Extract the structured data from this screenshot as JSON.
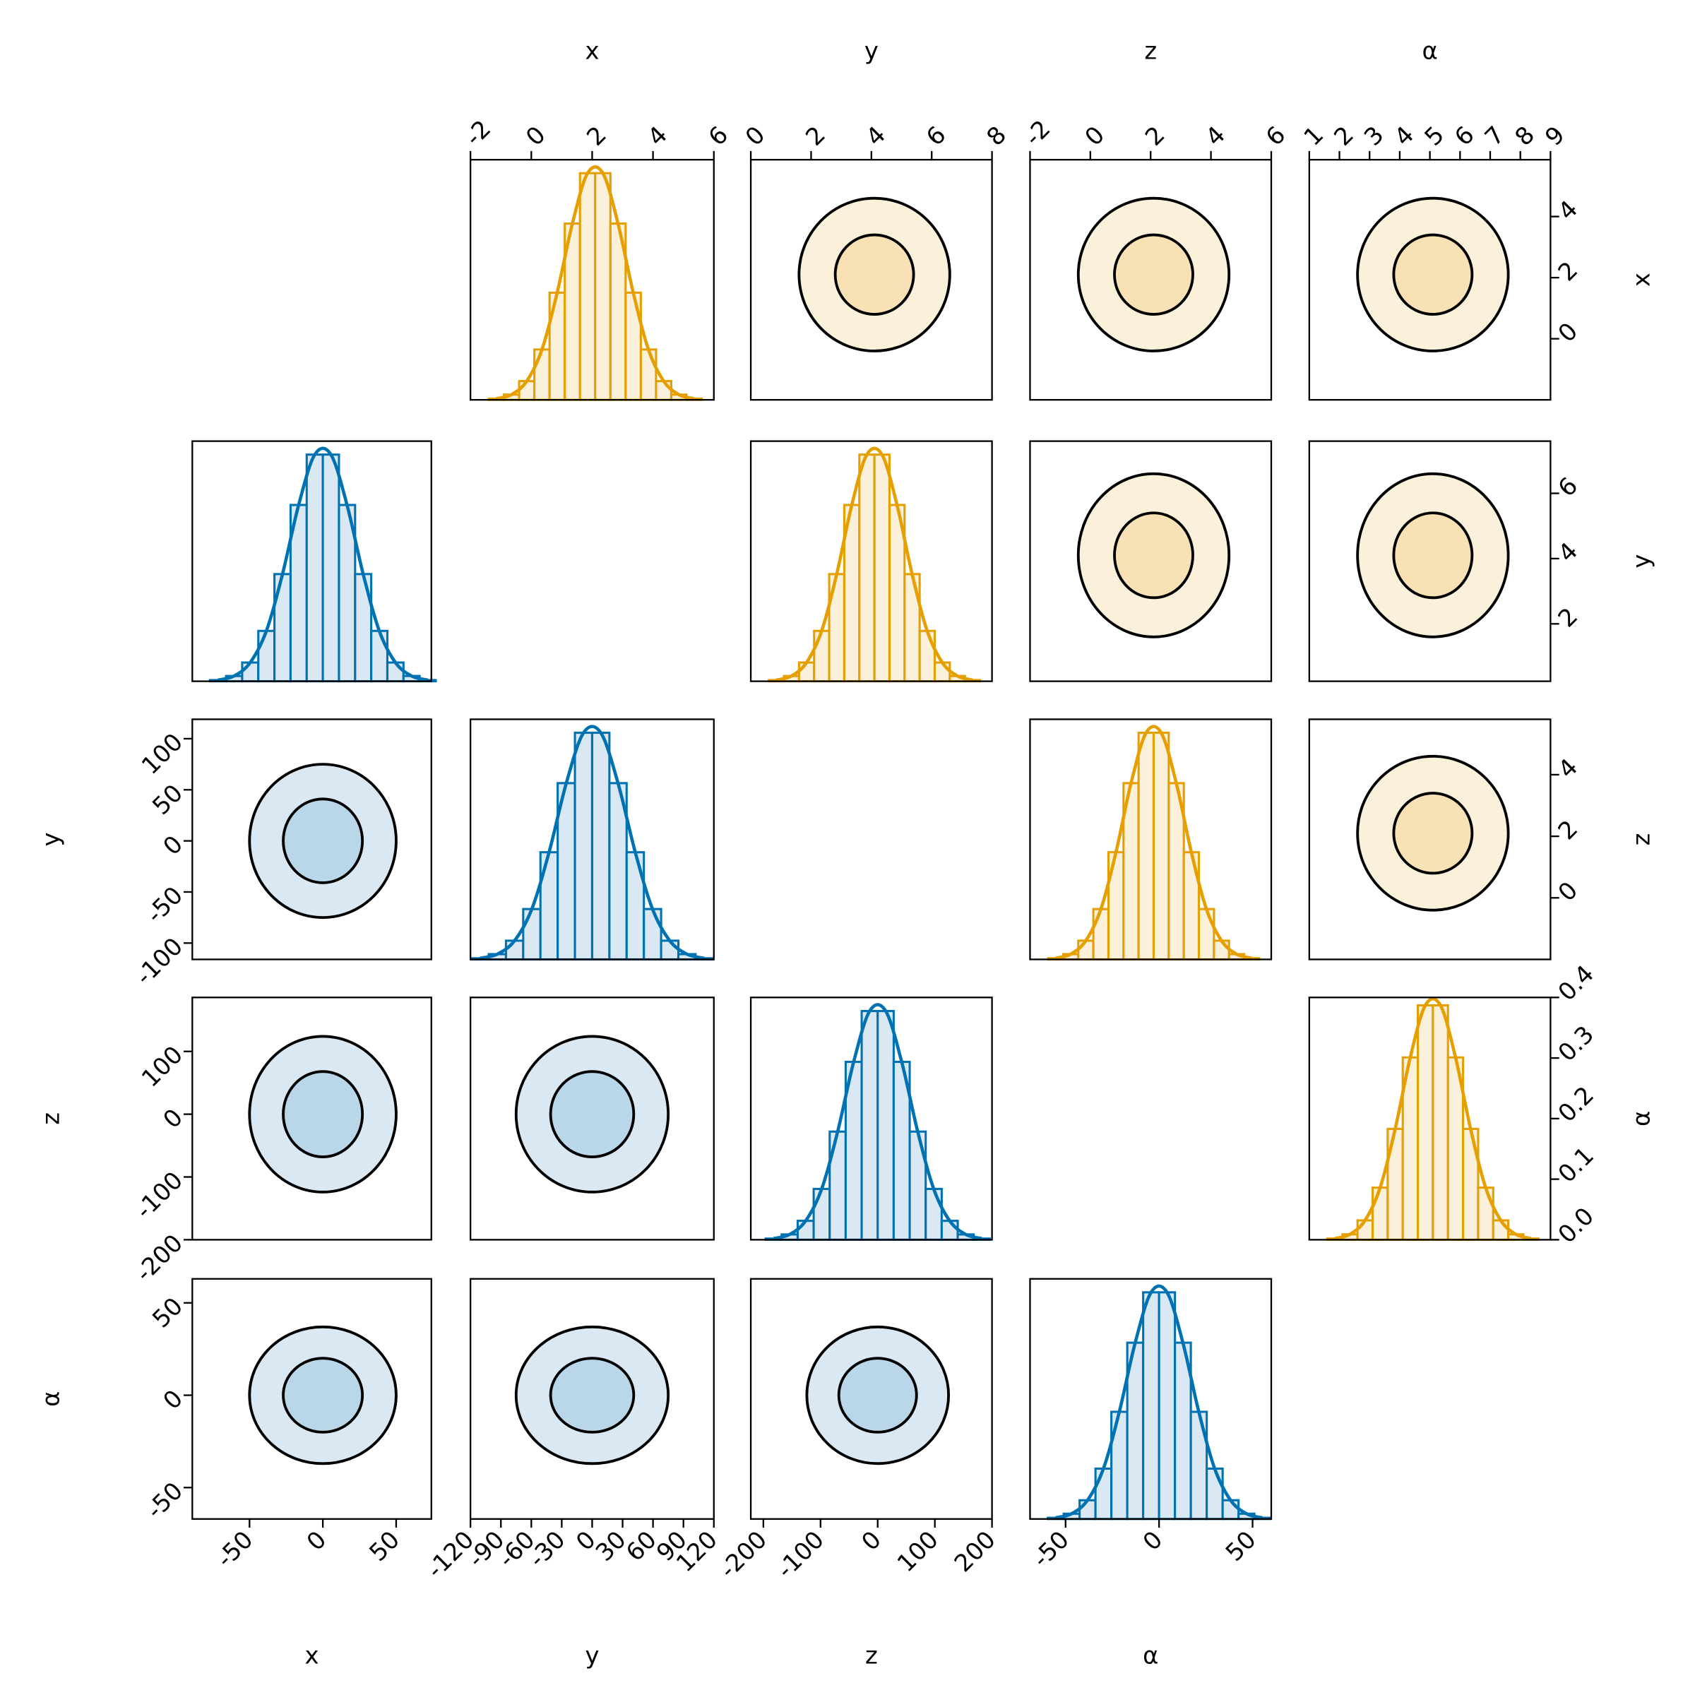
{
  "chart_data": [
    {
      "type": "corner",
      "color": "#0072b2",
      "fill_outer": "#d9e8f2",
      "fill_inner": "#bad7e9",
      "xaxes": [
        {
          "label": "x",
          "xlim": [
            -89,
            74
          ],
          "xticks": [
            -50,
            0,
            50
          ]
        },
        {
          "label": "y",
          "xlim": [
            -120,
            120
          ],
          "xticks": [
            -120,
            -90,
            -60,
            -30,
            0,
            30,
            60,
            90,
            120
          ]
        },
        {
          "label": "z",
          "xlim": [
            -222,
            200
          ],
          "xticks": [
            -200,
            -100,
            0,
            100,
            200
          ]
        },
        {
          "label": "α",
          "xlim": [
            -69,
            60
          ],
          "xticks": [
            -50,
            0,
            50
          ]
        }
      ],
      "yaxes": [
        {
          "label": "y",
          "ylim": [
            -116,
            119
          ],
          "yticks": [
            -100,
            -50,
            0,
            50,
            100
          ]
        },
        {
          "label": "z",
          "ylim": [
            -200,
            186
          ],
          "yticks": [
            -200,
            -100,
            0,
            100
          ]
        },
        {
          "label": "α",
          "ylim": [
            -67,
            63
          ],
          "yticks": [
            -50,
            0,
            50
          ]
        }
      ],
      "hists": [
        {
          "ylim": [
            0,
            0.41
          ],
          "bins": [
            -77,
            -66,
            -55,
            -44,
            -33,
            -22,
            -11,
            0,
            11,
            22,
            33,
            44,
            55,
            66,
            77
          ],
          "values": [
            0.002,
            0.009,
            0.032,
            0.086,
            0.183,
            0.301,
            0.387,
            0.387,
            0.301,
            0.183,
            0.086,
            0.032,
            0.009,
            0.002
          ]
        },
        {
          "ylim": [
            0,
            0.41
          ],
          "bins": [
            -119,
            -102,
            -85,
            -68,
            -51,
            -34,
            -17,
            0,
            17,
            34,
            51,
            68,
            85,
            102,
            119
          ],
          "values": [
            0.002,
            0.009,
            0.032,
            0.086,
            0.183,
            0.301,
            0.387,
            0.387,
            0.301,
            0.183,
            0.086,
            0.032,
            0.009,
            0.002
          ]
        },
        {
          "ylim": [
            0,
            0.41
          ],
          "bins": [
            -196,
            -168,
            -140,
            -112,
            -84,
            -56,
            -28,
            0,
            28,
            56,
            84,
            112,
            140,
            168,
            196
          ],
          "values": [
            0.002,
            0.009,
            0.032,
            0.086,
            0.183,
            0.301,
            0.387,
            0.387,
            0.301,
            0.183,
            0.086,
            0.032,
            0.009,
            0.002
          ]
        },
        {
          "ylim": [
            0,
            0.41
          ],
          "bins": [
            -59.5,
            -51,
            -42.5,
            -34,
            -25.5,
            -17,
            -8.5,
            0,
            8.5,
            17,
            25.5,
            34,
            42.5,
            51,
            59.5
          ],
          "values": [
            0.002,
            0.009,
            0.032,
            0.086,
            0.183,
            0.301,
            0.387,
            0.387,
            0.301,
            0.183,
            0.086,
            0.032,
            0.009,
            0.002
          ]
        }
      ],
      "contours": [
        [
          {
            "center": [
              0,
              0
            ],
            "inner": [
              27,
              41
            ],
            "outer": [
              50,
              75
            ]
          }
        ],
        [
          {
            "center": [
              0,
              0
            ],
            "inner": [
              27,
              68
            ],
            "outer": [
              50,
              124
            ]
          },
          {
            "center": [
              0,
              0
            ],
            "inner": [
              41,
              68
            ],
            "outer": [
              75,
              124
            ]
          }
        ],
        [
          {
            "center": [
              0,
              0
            ],
            "inner": [
              27,
              20
            ],
            "outer": [
              50,
              37
            ]
          },
          {
            "center": [
              0,
              0
            ],
            "inner": [
              41,
              20
            ],
            "outer": [
              75,
              37
            ]
          },
          {
            "center": [
              0,
              0
            ],
            "inner": [
              68,
              20
            ],
            "outer": [
              124,
              37
            ]
          }
        ]
      ]
    },
    {
      "type": "corner",
      "color": "#e69f00",
      "fill_outer": "#fbf0da",
      "fill_inner": "#f7e1b5",
      "xaxes": [
        {
          "label": "x",
          "xlim": [
            -2,
            6
          ],
          "xticks": [
            -2,
            0,
            2,
            4,
            6
          ]
        },
        {
          "label": "y",
          "xlim": [
            0,
            8
          ],
          "xticks": [
            0,
            2,
            4,
            6,
            8
          ]
        },
        {
          "label": "z",
          "xlim": [
            -2,
            6
          ],
          "xticks": [
            -2,
            0,
            2,
            4,
            6
          ]
        },
        {
          "label": "α",
          "xlim": [
            1,
            9
          ],
          "xticks": [
            1,
            2,
            3,
            4,
            5,
            6,
            7,
            8,
            9
          ]
        }
      ],
      "yaxes": [
        {
          "label": "x",
          "ylim": [
            -2,
            5.86
          ],
          "yticks": [
            0,
            2,
            4
          ]
        },
        {
          "label": "y",
          "ylim": [
            0.24,
            7.6
          ],
          "yticks": [
            2,
            4,
            6
          ]
        },
        {
          "label": "z",
          "ylim": [
            -2,
            5.8
          ],
          "yticks": [
            0,
            2,
            4
          ]
        },
        {
          "label": "α",
          "ylim": [
            0,
            0.4
          ],
          "yticks": [
            {
              "value": 0,
              "label": "0.0"
            },
            0.1,
            0.2,
            0.3,
            0.4
          ]
        }
      ],
      "hists": [
        {
          "ylim": [
            0,
            0.41
          ],
          "bins": [
            -1.4,
            -0.9,
            -0.4,
            0.1,
            0.6,
            1.1,
            1.6,
            2.1,
            2.6,
            3.1,
            3.6,
            4.1,
            4.6,
            5.1,
            5.6
          ],
          "values": [
            0.002,
            0.009,
            0.032,
            0.086,
            0.183,
            0.301,
            0.387,
            0.387,
            0.301,
            0.183,
            0.086,
            0.032,
            0.009,
            0.002
          ]
        },
        {
          "ylim": [
            0,
            0.41
          ],
          "bins": [
            0.6,
            1.1,
            1.6,
            2.1,
            2.6,
            3.1,
            3.6,
            4.1,
            4.6,
            5.1,
            5.6,
            6.1,
            6.6,
            7.1,
            7.6
          ],
          "values": [
            0.002,
            0.009,
            0.032,
            0.086,
            0.183,
            0.301,
            0.387,
            0.387,
            0.301,
            0.183,
            0.086,
            0.032,
            0.009,
            0.002
          ]
        },
        {
          "ylim": [
            0,
            0.41
          ],
          "bins": [
            -1.4,
            -0.9,
            -0.4,
            0.1,
            0.6,
            1.1,
            1.6,
            2.1,
            2.6,
            3.1,
            3.6,
            4.1,
            4.6,
            5.1,
            5.6
          ],
          "values": [
            0.002,
            0.009,
            0.032,
            0.086,
            0.183,
            0.301,
            0.387,
            0.387,
            0.301,
            0.183,
            0.086,
            0.032,
            0.009,
            0.002
          ]
        },
        {
          "bins": [
            1.6,
            2.1,
            2.6,
            3.1,
            3.6,
            4.1,
            4.6,
            5.1,
            5.6,
            6.1,
            6.6,
            7.1,
            7.6,
            8.1,
            8.6
          ],
          "values": [
            0.002,
            0.009,
            0.032,
            0.086,
            0.183,
            0.301,
            0.387,
            0.387,
            0.301,
            0.183,
            0.086,
            0.032,
            0.009,
            0.002
          ]
        }
      ],
      "contours": [
        [
          {
            "center": [
              4.1,
              2.1
            ],
            "inner": [
              1.3,
              1.3
            ],
            "outer": [
              2.5,
              2.5
            ]
          },
          {
            "center": [
              2.1,
              2.1
            ],
            "inner": [
              1.3,
              1.3
            ],
            "outer": [
              2.5,
              2.5
            ]
          },
          {
            "center": [
              5.1,
              2.1
            ],
            "inner": [
              1.3,
              1.3
            ],
            "outer": [
              2.5,
              2.5
            ]
          }
        ],
        [
          {
            "center": [
              2.1,
              4.1
            ],
            "inner": [
              1.3,
              1.3
            ],
            "outer": [
              2.5,
              2.5
            ]
          },
          {
            "center": [
              5.1,
              4.1
            ],
            "inner": [
              1.3,
              1.3
            ],
            "outer": [
              2.5,
              2.5
            ]
          }
        ],
        [
          {
            "center": [
              5.1,
              2.1
            ],
            "inner": [
              1.3,
              1.3
            ],
            "outer": [
              2.5,
              2.5
            ]
          }
        ]
      ]
    }
  ]
}
